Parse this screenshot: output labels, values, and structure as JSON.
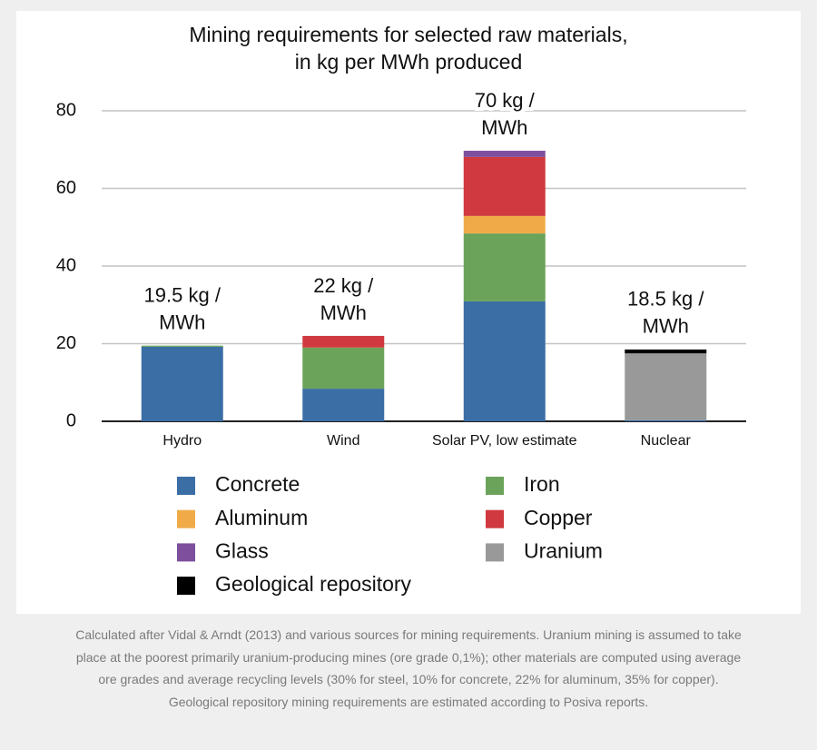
{
  "chart_data": {
    "type": "stacked_bar",
    "title": [
      "Mining requirements for selected raw materials,",
      "in kg per MWh produced"
    ],
    "categories": [
      "Hydro",
      "Wind",
      "Solar PV, low estimate",
      "Nuclear"
    ],
    "series": [
      {
        "name": "Concrete",
        "color": "#3b6ea5",
        "values": [
          19.2,
          8.4,
          30.9,
          0.3
        ]
      },
      {
        "name": "Iron",
        "color": "#6ba35a",
        "values": [
          0.3,
          10.6,
          17.5,
          0
        ]
      },
      {
        "name": "Aluminum",
        "color": "#f0ab48",
        "values": [
          0,
          0,
          4.5,
          0
        ]
      },
      {
        "name": "Copper",
        "color": "#d0393f",
        "values": [
          0,
          3.0,
          15.2,
          0
        ]
      },
      {
        "name": "Glass",
        "color": "#7d4f9c",
        "values": [
          0,
          0,
          1.6,
          0
        ]
      },
      {
        "name": "Uranium",
        "color": "#999999",
        "values": [
          0,
          0,
          0,
          17.2
        ]
      },
      {
        "name": "Geological repository",
        "color": "#000000",
        "values": [
          0,
          0,
          0,
          1.0
        ]
      }
    ],
    "annotations": [
      [
        "19.5 kg /",
        "MWh"
      ],
      [
        "22 kg /",
        "MWh"
      ],
      [
        "70 kg /",
        "MWh"
      ],
      [
        "18.5 kg /",
        "MWh"
      ]
    ],
    "ylim": [
      0,
      80
    ],
    "yticks": [
      0,
      20,
      40,
      60,
      80
    ],
    "grid": true,
    "caption": [
      "Calculated after Vidal & Arndt (2013) and various sources for mining requirements. Uranium mining is assumed to take",
      "place at the poorest primarily uranium-producing mines (ore grade 0,1%); other materials are computed using average",
      "ore grades and average recycling levels (30% for steel, 10% for concrete, 22% for aluminum, 35% for copper).",
      "Geological repository mining requirements are estimated according to Posiva reports."
    ]
  }
}
